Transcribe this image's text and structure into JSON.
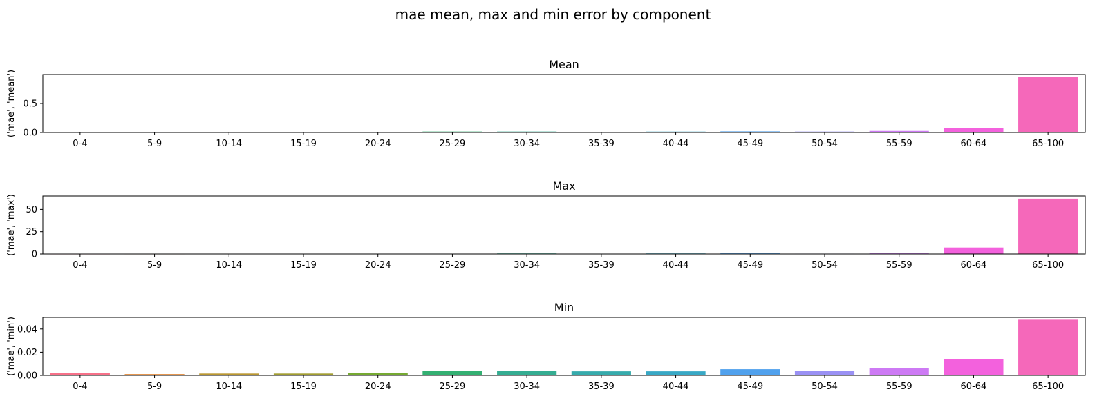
{
  "figure": {
    "title": "mae mean, max and min error by component"
  },
  "chart_data": [
    {
      "type": "bar",
      "title": "Mean",
      "xlabel": "",
      "ylabel": "('mae', 'mean')",
      "categories": [
        "0-4",
        "5-9",
        "10-14",
        "15-19",
        "20-24",
        "25-29",
        "30-34",
        "35-39",
        "40-44",
        "45-49",
        "50-54",
        "55-59",
        "60-64",
        "65-100"
      ],
      "values": [
        0.003,
        0.004,
        0.005,
        0.006,
        0.007,
        0.016,
        0.016,
        0.011,
        0.015,
        0.019,
        0.016,
        0.027,
        0.075,
        0.96
      ],
      "ylim": [
        0,
        1.0
      ],
      "yticks": [
        0.0,
        0.5
      ],
      "ytick_labels": [
        "0.0",
        "0.5"
      ],
      "grid": false,
      "legend": "none"
    },
    {
      "type": "bar",
      "title": "Max",
      "xlabel": "",
      "ylabel": "('mae', 'max')",
      "categories": [
        "0-4",
        "5-9",
        "10-14",
        "15-19",
        "20-24",
        "25-29",
        "30-34",
        "35-39",
        "40-44",
        "45-49",
        "50-54",
        "55-59",
        "60-64",
        "65-100"
      ],
      "values": [
        0.05,
        0.06,
        0.08,
        0.08,
        0.12,
        0.2,
        0.6,
        0.25,
        0.6,
        0.7,
        0.4,
        0.7,
        7.2,
        62.0
      ],
      "ylim": [
        0,
        65
      ],
      "yticks": [
        0,
        25,
        50
      ],
      "ytick_labels": [
        "0",
        "25",
        "50"
      ],
      "grid": false,
      "legend": "none"
    },
    {
      "type": "bar",
      "title": "Min",
      "xlabel": "",
      "ylabel": "('mae', 'min')",
      "categories": [
        "0-4",
        "5-9",
        "10-14",
        "15-19",
        "20-24",
        "25-29",
        "30-34",
        "35-39",
        "40-44",
        "45-49",
        "50-54",
        "55-59",
        "60-64",
        "65-100"
      ],
      "values": [
        0.0018,
        0.0011,
        0.0016,
        0.0016,
        0.0023,
        0.0041,
        0.0041,
        0.0035,
        0.0035,
        0.0053,
        0.0037,
        0.0064,
        0.0138,
        0.048
      ],
      "ylim": [
        0,
        0.05
      ],
      "yticks": [
        0.0,
        0.02,
        0.04
      ],
      "ytick_labels": [
        "0.00",
        "0.02",
        "0.04"
      ],
      "grid": false,
      "legend": "none"
    }
  ],
  "colors": {
    "bars": [
      "#f77189",
      "#e08432",
      "#bb9832",
      "#a29e31",
      "#76aa32",
      "#33b072",
      "#35ad92",
      "#36abac",
      "#38a8c5",
      "#50a1ed",
      "#9a91f4",
      "#cd7af4",
      "#f361dd",
      "#f568ba"
    ],
    "axis": "#000000",
    "text": "#000000"
  }
}
